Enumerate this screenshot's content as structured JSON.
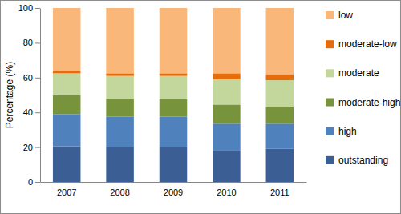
{
  "chart_data": {
    "type": "bar",
    "stacked": true,
    "y_label": "Percentage (%)",
    "categories": [
      "2007",
      "2008",
      "2009",
      "2010",
      "2011"
    ],
    "series": [
      {
        "name": "outstanding",
        "color": "#3b5f95",
        "values": [
          20.5,
          20,
          20,
          18,
          19
        ]
      },
      {
        "name": "high",
        "color": "#4f81bd",
        "values": [
          18.5,
          17.5,
          17.5,
          15.5,
          14.5
        ]
      },
      {
        "name": "moderate-high",
        "color": "#77933c",
        "values": [
          11,
          10,
          10,
          11,
          9.5
        ]
      },
      {
        "name": "moderate",
        "color": "#c3d69b",
        "values": [
          12.5,
          13.5,
          13.5,
          14.5,
          15.5
        ]
      },
      {
        "name": "moderate-low",
        "color": "#e46c0a",
        "values": [
          1.5,
          1.5,
          1.5,
          3.5,
          3.5
        ]
      },
      {
        "name": "low",
        "color": "#fab77a",
        "values": [
          36,
          37.5,
          37.5,
          37.5,
          38
        ]
      }
    ],
    "ylim": [
      0,
      100
    ],
    "yticks": [
      0,
      20,
      40,
      60,
      80,
      100
    ],
    "grid": false,
    "legend": "right"
  }
}
